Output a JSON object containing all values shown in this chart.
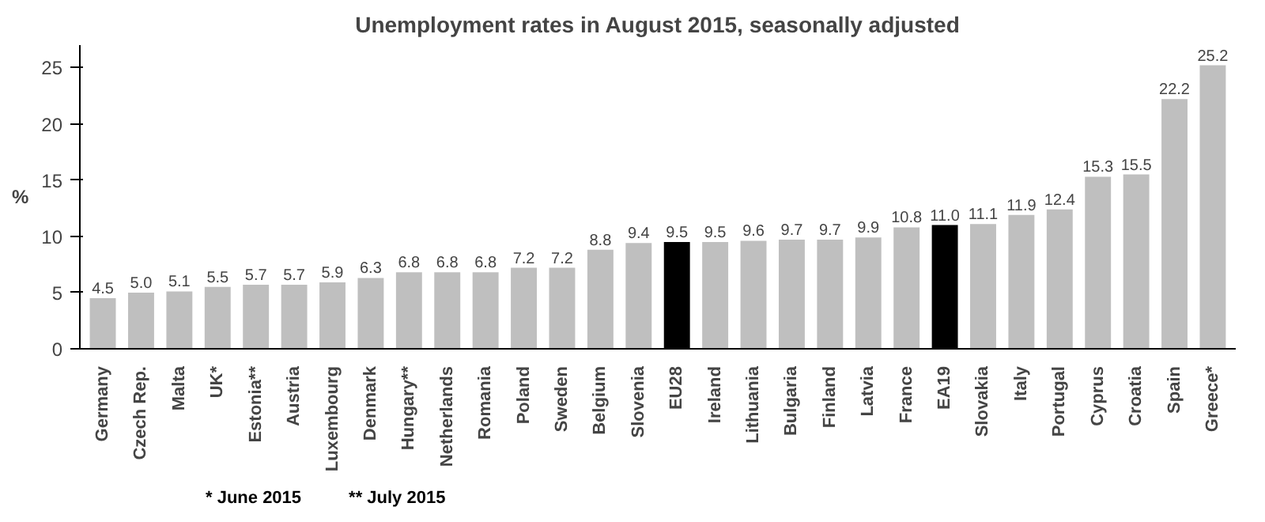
{
  "chart_data": {
    "type": "bar",
    "title": "Unemployment rates in August 2015, seasonally adjusted",
    "ylabel": "%",
    "categories": [
      "Germany",
      "Czech Rep.",
      "Malta",
      "UK*",
      "Estonia**",
      "Austria",
      "Luxembourg",
      "Denmark",
      "Hungary**",
      "Netherlands",
      "Romania",
      "Poland",
      "Sweden",
      "Belgium",
      "Slovenia",
      "EU28",
      "Ireland",
      "Lithuania",
      "Bulgaria",
      "Finland",
      "Latvia",
      "France",
      "EA19",
      "Slovakia",
      "Italy",
      "Portugal",
      "Cyprus",
      "Croatia",
      "Spain",
      "Greece*"
    ],
    "values": [
      4.5,
      5.0,
      5.1,
      5.5,
      5.7,
      5.7,
      5.9,
      6.3,
      6.8,
      6.8,
      6.8,
      7.2,
      7.2,
      8.8,
      9.4,
      9.5,
      9.5,
      9.6,
      9.7,
      9.7,
      9.9,
      10.8,
      11.0,
      11.1,
      11.9,
      12.4,
      15.3,
      15.5,
      22.2,
      25.2
    ],
    "colors": [
      "#bfbfbf",
      "#bfbfbf",
      "#bfbfbf",
      "#bfbfbf",
      "#bfbfbf",
      "#bfbfbf",
      "#bfbfbf",
      "#bfbfbf",
      "#bfbfbf",
      "#bfbfbf",
      "#bfbfbf",
      "#bfbfbf",
      "#bfbfbf",
      "#bfbfbf",
      "#bfbfbf",
      "#000000",
      "#bfbfbf",
      "#bfbfbf",
      "#bfbfbf",
      "#bfbfbf",
      "#bfbfbf",
      "#bfbfbf",
      "#000000",
      "#bfbfbf",
      "#bfbfbf",
      "#bfbfbf",
      "#bfbfbf",
      "#bfbfbf",
      "#bfbfbf",
      "#bfbfbf"
    ],
    "value_labels": [
      "4.5",
      "5.0",
      "5.1",
      "5.5",
      "5.7",
      "5.7",
      "5.9",
      "6.3",
      "6.8",
      "6.8",
      "6.8",
      "7.2",
      "7.2",
      "8.8",
      "9.4",
      "9.5",
      "9.5",
      "9.6",
      "9.7",
      "9.7",
      "9.9",
      "10.8",
      "11.0",
      "11.1",
      "11.9",
      "12.4",
      "15.3",
      "15.5",
      "22.2",
      "25.2"
    ],
    "ylim": [
      0,
      27
    ],
    "yticks": [
      0,
      5,
      10,
      15,
      20,
      25
    ],
    "grid": false,
    "annotations": [
      "* June 2015",
      "** July 2015"
    ]
  }
}
